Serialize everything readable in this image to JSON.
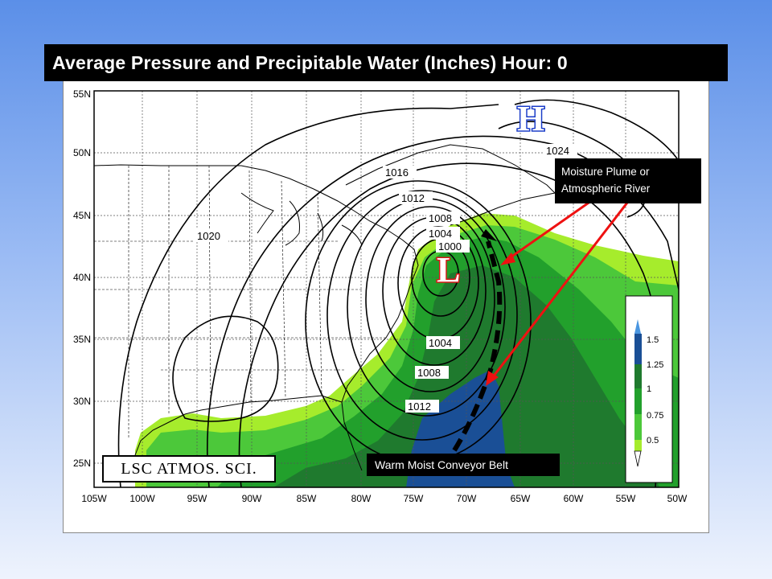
{
  "title": "Average Pressure and Precipitable Water (Inches) Hour:  0",
  "callouts": {
    "river_line1": "Moisture Plume  or",
    "river_line2": "Atmospheric River",
    "belt": "Warm Moist Conveyor Belt"
  },
  "credit": "LSC ATMOS. SCI.",
  "systems": {
    "high": "H",
    "low": "L"
  },
  "lat_labels": [
    "55N",
    "50N",
    "45N",
    "40N",
    "35N",
    "30N",
    "25N"
  ],
  "lon_labels": [
    "105W",
    "100W",
    "95W",
    "90W",
    "85W",
    "80W",
    "75W",
    "70W",
    "65W",
    "60W",
    "55W",
    "50W"
  ],
  "isobar_labels": [
    "1024",
    "1016",
    "1012",
    "1008",
    "1004",
    "1000",
    "1020",
    "1004",
    "1008",
    "1012"
  ],
  "legend": {
    "ticks": [
      "1.5",
      "1.25",
      "1",
      "0.75",
      "0.5"
    ],
    "colors": [
      "#4a96e0",
      "#1a4f96",
      "#1f7a2e",
      "#22a02c",
      "#4cc83a",
      "#a6ec2c"
    ]
  },
  "colors": {
    "arrow": "#ee1111",
    "title_bg": "#000000"
  }
}
